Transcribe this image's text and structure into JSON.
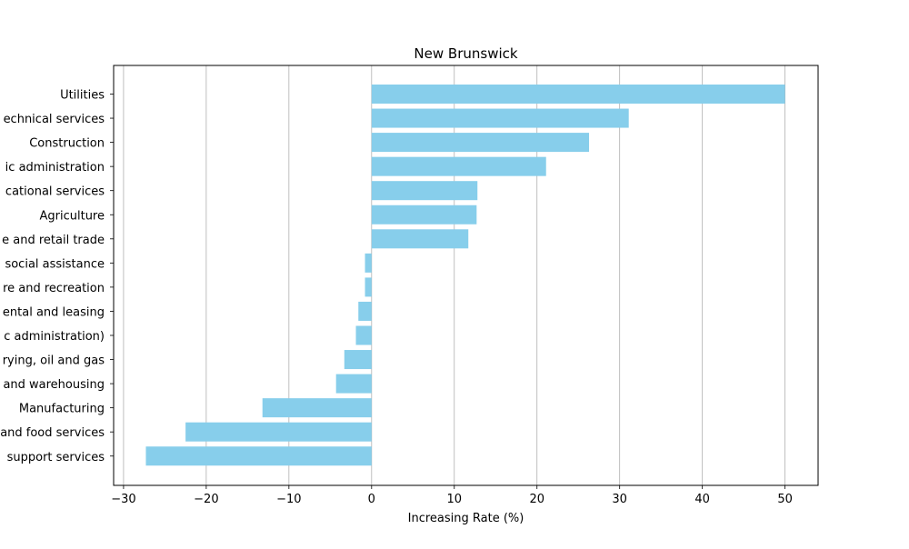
{
  "chart_data": {
    "type": "bar",
    "orientation": "horizontal",
    "title": "New Brunswick",
    "xlabel": "Increasing Rate (%)",
    "ylabel": "",
    "xlim": [
      -31.2,
      54.0
    ],
    "xticks": [
      -30,
      -20,
      -10,
      0,
      10,
      20,
      30,
      40,
      50
    ],
    "xtick_labels": [
      "−30",
      "−20",
      "−10",
      "0",
      "10",
      "20",
      "30",
      "40",
      "50"
    ],
    "grid": "vertical",
    "bar_color": "#87ceeb",
    "categories": [
      "Utilities",
      "echnical services",
      "Construction",
      "ic administration",
      "cational services",
      "Agriculture",
      "e and retail trade",
      "social assistance",
      "re and recreation",
      "ental and leasing",
      "c administration)",
      "rying, oil and gas",
      "and warehousing",
      "Manufacturing",
      "and food services",
      "support services"
    ],
    "values": [
      50.0,
      31.1,
      26.3,
      21.1,
      12.8,
      12.7,
      11.7,
      -0.8,
      -0.8,
      -1.6,
      -1.9,
      -3.3,
      -4.3,
      -13.2,
      -22.5,
      -27.3
    ]
  }
}
